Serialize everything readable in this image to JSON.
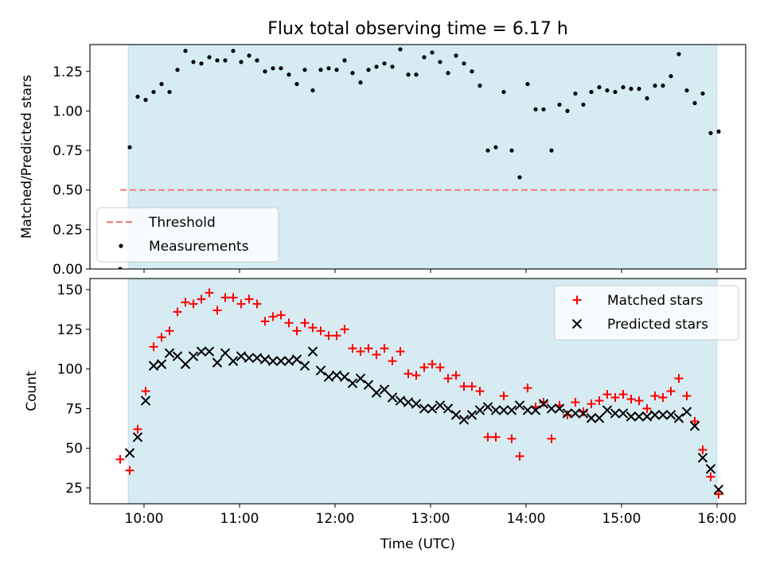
{
  "figure": {
    "title": "Flux total observing time = 6.17 h"
  },
  "chart_data": [
    {
      "type": "scatter",
      "ylabel": "Matched/Predicted stars",
      "xlabel": "",
      "xlim": [
        "09:26",
        "16:18"
      ],
      "ylim": [
        0,
        1.42
      ],
      "x_ticks": [
        "10:00",
        "11:00",
        "12:00",
        "13:00",
        "14:00",
        "15:00",
        "16:00"
      ],
      "show_x_tick_labels": false,
      "y_ticks": [
        0.0,
        0.25,
        0.5,
        0.75,
        1.0,
        1.25
      ],
      "y_tick_labels": [
        "0.00",
        "0.25",
        "0.50",
        "0.75",
        "1.00",
        "1.25"
      ],
      "shaded_span": [
        "09:50",
        "16:00"
      ],
      "legend": {
        "position": "lower-left",
        "entries": [
          {
            "label": "Threshold",
            "style": "dashed-line",
            "color": "#f08080"
          },
          {
            "label": "Measurements",
            "style": "dot",
            "color": "#000000"
          }
        ]
      },
      "threshold": {
        "name": "Threshold",
        "y": 0.5,
        "x_range": [
          "09:45",
          "16:00"
        ],
        "color": "#f08080"
      },
      "series": [
        {
          "name": "Measurements",
          "marker": "dot",
          "color": "#000000",
          "points": [
            [
              "09:45",
              0.0
            ],
            [
              "09:51",
              0.77
            ],
            [
              "09:56",
              1.09
            ],
            [
              "10:01",
              1.07
            ],
            [
              "10:06",
              1.12
            ],
            [
              "10:11",
              1.17
            ],
            [
              "10:16",
              1.12
            ],
            [
              "10:21",
              1.26
            ],
            [
              "10:26",
              1.38
            ],
            [
              "10:31",
              1.31
            ],
            [
              "10:36",
              1.3
            ],
            [
              "10:41",
              1.34
            ],
            [
              "10:46",
              1.32
            ],
            [
              "10:51",
              1.32
            ],
            [
              "10:56",
              1.38
            ],
            [
              "11:01",
              1.31
            ],
            [
              "11:06",
              1.35
            ],
            [
              "11:11",
              1.32
            ],
            [
              "11:16",
              1.25
            ],
            [
              "11:21",
              1.27
            ],
            [
              "11:26",
              1.27
            ],
            [
              "11:31",
              1.23
            ],
            [
              "11:36",
              1.17
            ],
            [
              "11:41",
              1.26
            ],
            [
              "11:46",
              1.13
            ],
            [
              "11:51",
              1.26
            ],
            [
              "11:56",
              1.27
            ],
            [
              "12:01",
              1.26
            ],
            [
              "12:06",
              1.32
            ],
            [
              "12:11",
              1.24
            ],
            [
              "12:16",
              1.18
            ],
            [
              "12:21",
              1.26
            ],
            [
              "12:26",
              1.28
            ],
            [
              "12:31",
              1.3
            ],
            [
              "12:36",
              1.28
            ],
            [
              "12:41",
              1.39
            ],
            [
              "12:46",
              1.23
            ],
            [
              "12:51",
              1.23
            ],
            [
              "12:56",
              1.34
            ],
            [
              "13:01",
              1.37
            ],
            [
              "13:06",
              1.31
            ],
            [
              "13:11",
              1.24
            ],
            [
              "13:16",
              1.35
            ],
            [
              "13:21",
              1.3
            ],
            [
              "13:26",
              1.25
            ],
            [
              "13:31",
              1.16
            ],
            [
              "13:36",
              0.75
            ],
            [
              "13:41",
              0.77
            ],
            [
              "13:46",
              1.12
            ],
            [
              "13:51",
              0.75
            ],
            [
              "13:56",
              0.58
            ],
            [
              "14:01",
              1.17
            ],
            [
              "14:06",
              1.01
            ],
            [
              "14:11",
              1.01
            ],
            [
              "14:16",
              0.75
            ],
            [
              "14:21",
              1.04
            ],
            [
              "14:26",
              1.0
            ],
            [
              "14:31",
              1.11
            ],
            [
              "14:36",
              1.04
            ],
            [
              "14:41",
              1.12
            ],
            [
              "14:46",
              1.15
            ],
            [
              "14:51",
              1.13
            ],
            [
              "14:56",
              1.12
            ],
            [
              "15:01",
              1.15
            ],
            [
              "15:06",
              1.14
            ],
            [
              "15:11",
              1.14
            ],
            [
              "15:16",
              1.08
            ],
            [
              "15:21",
              1.16
            ],
            [
              "15:26",
              1.16
            ],
            [
              "15:31",
              1.22
            ],
            [
              "15:36",
              1.36
            ],
            [
              "15:41",
              1.13
            ],
            [
              "15:46",
              1.05
            ],
            [
              "15:51",
              1.11
            ],
            [
              "15:56",
              0.86
            ],
            [
              "16:01",
              0.87
            ]
          ]
        }
      ]
    },
    {
      "type": "scatter",
      "ylabel": "Count",
      "xlabel": "Time (UTC)",
      "xlim": [
        "09:26",
        "16:18"
      ],
      "ylim": [
        15,
        157
      ],
      "x_ticks": [
        "10:00",
        "11:00",
        "12:00",
        "13:00",
        "14:00",
        "15:00",
        "16:00"
      ],
      "show_x_tick_labels": true,
      "y_ticks": [
        25,
        50,
        75,
        100,
        125,
        150
      ],
      "y_tick_labels": [
        "25",
        "50",
        "75",
        "100",
        "125",
        "150"
      ],
      "shaded_span": [
        "09:50",
        "16:00"
      ],
      "legend": {
        "position": "upper-right",
        "entries": [
          {
            "label": "Matched stars",
            "style": "plus",
            "color": "#ff0000"
          },
          {
            "label": "Predicted stars",
            "style": "x",
            "color": "#000000"
          }
        ]
      },
      "series": [
        {
          "name": "Matched stars",
          "marker": "plus",
          "color": "#ff0000",
          "points": [
            [
              "09:45",
              43
            ],
            [
              "09:51",
              36
            ],
            [
              "09:56",
              62
            ],
            [
              "10:01",
              86
            ],
            [
              "10:06",
              114
            ],
            [
              "10:11",
              120
            ],
            [
              "10:16",
              124
            ],
            [
              "10:21",
              136
            ],
            [
              "10:26",
              142
            ],
            [
              "10:31",
              141
            ],
            [
              "10:36",
              144
            ],
            [
              "10:41",
              148
            ],
            [
              "10:46",
              137
            ],
            [
              "10:51",
              145
            ],
            [
              "10:56",
              145
            ],
            [
              "11:01",
              141
            ],
            [
              "11:06",
              144
            ],
            [
              "11:11",
              141
            ],
            [
              "11:16",
              130
            ],
            [
              "11:21",
              133
            ],
            [
              "11:26",
              134
            ],
            [
              "11:31",
              129
            ],
            [
              "11:36",
              124
            ],
            [
              "11:41",
              129
            ],
            [
              "11:46",
              126
            ],
            [
              "11:51",
              124
            ],
            [
              "11:56",
              121
            ],
            [
              "12:01",
              121
            ],
            [
              "12:06",
              125
            ],
            [
              "12:11",
              113
            ],
            [
              "12:16",
              111
            ],
            [
              "12:21",
              113
            ],
            [
              "12:26",
              109
            ],
            [
              "12:31",
              113
            ],
            [
              "12:36",
              105
            ],
            [
              "12:41",
              111
            ],
            [
              "12:46",
              97
            ],
            [
              "12:51",
              96
            ],
            [
              "12:56",
              101
            ],
            [
              "13:01",
              103
            ],
            [
              "13:06",
              101
            ],
            [
              "13:11",
              94
            ],
            [
              "13:16",
              96
            ],
            [
              "13:21",
              89
            ],
            [
              "13:26",
              89
            ],
            [
              "13:31",
              86
            ],
            [
              "13:36",
              57
            ],
            [
              "13:41",
              57
            ],
            [
              "13:46",
              83
            ],
            [
              "13:51",
              56
            ],
            [
              "13:56",
              45
            ],
            [
              "14:01",
              88
            ],
            [
              "14:06",
              76
            ],
            [
              "14:11",
              79
            ],
            [
              "14:16",
              56
            ],
            [
              "14:21",
              77
            ],
            [
              "14:26",
              71
            ],
            [
              "14:31",
              79
            ],
            [
              "14:36",
              73
            ],
            [
              "14:41",
              78
            ],
            [
              "14:46",
              80
            ],
            [
              "14:51",
              84
            ],
            [
              "14:56",
              82
            ],
            [
              "15:01",
              84
            ],
            [
              "15:06",
              81
            ],
            [
              "15:11",
              80
            ],
            [
              "15:16",
              75
            ],
            [
              "15:21",
              83
            ],
            [
              "15:26",
              82
            ],
            [
              "15:31",
              86
            ],
            [
              "15:36",
              94
            ],
            [
              "15:41",
              83
            ],
            [
              "15:46",
              67
            ],
            [
              "15:51",
              49
            ],
            [
              "15:56",
              32
            ],
            [
              "16:01",
              21
            ]
          ]
        },
        {
          "name": "Predicted stars",
          "marker": "x",
          "color": "#000000",
          "points": [
            [
              "09:51",
              47
            ],
            [
              "09:56",
              57
            ],
            [
              "10:01",
              80
            ],
            [
              "10:06",
              102
            ],
            [
              "10:11",
              103
            ],
            [
              "10:16",
              110
            ],
            [
              "10:21",
              108
            ],
            [
              "10:26",
              103
            ],
            [
              "10:31",
              108
            ],
            [
              "10:36",
              111
            ],
            [
              "10:41",
              111
            ],
            [
              "10:46",
              104
            ],
            [
              "10:51",
              110
            ],
            [
              "10:56",
              105
            ],
            [
              "11:01",
              108
            ],
            [
              "11:06",
              107
            ],
            [
              "11:11",
              107
            ],
            [
              "11:16",
              106
            ],
            [
              "11:21",
              105
            ],
            [
              "11:26",
              105
            ],
            [
              "11:31",
              105
            ],
            [
              "11:36",
              106
            ],
            [
              "11:41",
              102
            ],
            [
              "11:46",
              111
            ],
            [
              "11:51",
              99
            ],
            [
              "11:56",
              95
            ],
            [
              "12:01",
              96
            ],
            [
              "12:06",
              95
            ],
            [
              "12:11",
              91
            ],
            [
              "12:16",
              94
            ],
            [
              "12:21",
              90
            ],
            [
              "12:26",
              85
            ],
            [
              "12:31",
              87
            ],
            [
              "12:36",
              82
            ],
            [
              "12:41",
              80
            ],
            [
              "12:46",
              79
            ],
            [
              "12:51",
              78
            ],
            [
              "12:56",
              75
            ],
            [
              "13:01",
              75
            ],
            [
              "13:06",
              77
            ],
            [
              "13:11",
              75
            ],
            [
              "13:16",
              71
            ],
            [
              "13:21",
              68
            ],
            [
              "13:26",
              71
            ],
            [
              "13:31",
              74
            ],
            [
              "13:36",
              76
            ],
            [
              "13:41",
              74
            ],
            [
              "13:46",
              74
            ],
            [
              "13:51",
              74
            ],
            [
              "13:56",
              77
            ],
            [
              "14:01",
              74
            ],
            [
              "14:06",
              74
            ],
            [
              "14:11",
              78
            ],
            [
              "14:16",
              75
            ],
            [
              "14:21",
              75
            ],
            [
              "14:26",
              72
            ],
            [
              "14:31",
              72
            ],
            [
              "14:36",
              72
            ],
            [
              "14:41",
              69
            ],
            [
              "14:46",
              69
            ],
            [
              "14:51",
              74
            ],
            [
              "14:56",
              72
            ],
            [
              "15:01",
              72
            ],
            [
              "15:06",
              70
            ],
            [
              "15:11",
              70
            ],
            [
              "15:16",
              70
            ],
            [
              "15:21",
              71
            ],
            [
              "15:26",
              71
            ],
            [
              "15:31",
              71
            ],
            [
              "15:36",
              69
            ],
            [
              "15:41",
              73
            ],
            [
              "15:46",
              64
            ],
            [
              "15:51",
              44
            ],
            [
              "15:56",
              37
            ],
            [
              "16:01",
              24
            ]
          ]
        }
      ]
    }
  ]
}
